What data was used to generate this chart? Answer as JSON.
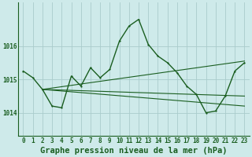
{
  "background_color": "#ceeaea",
  "grid_color": "#aacccc",
  "line_color": "#1a5e20",
  "title": "Graphe pression niveau de la mer (hPa)",
  "xlim": [
    -0.5,
    23.5
  ],
  "ylim": [
    1013.3,
    1017.3
  ],
  "yticks": [
    1014,
    1015,
    1016
  ],
  "xticks": [
    0,
    1,
    2,
    3,
    4,
    5,
    6,
    7,
    8,
    9,
    10,
    11,
    12,
    13,
    14,
    15,
    16,
    17,
    18,
    19,
    20,
    21,
    22,
    23
  ],
  "main_series": {
    "x": [
      0,
      1,
      2,
      3,
      4,
      5,
      6,
      7,
      8,
      9,
      10,
      11,
      12,
      13,
      14,
      15,
      16,
      17,
      18,
      19,
      20,
      21,
      22,
      23
    ],
    "y": [
      1015.25,
      1015.05,
      1014.7,
      1014.2,
      1014.15,
      1015.1,
      1014.8,
      1015.35,
      1015.05,
      1015.3,
      1016.15,
      1016.6,
      1016.8,
      1016.05,
      1015.7,
      1015.5,
      1015.2,
      1014.8,
      1014.55,
      1014.0,
      1014.05,
      1014.5,
      1015.25,
      1015.5
    ]
  },
  "trend_lines": [
    {
      "x": [
        2,
        23
      ],
      "y": [
        1014.7,
        1015.55
      ]
    },
    {
      "x": [
        2,
        23
      ],
      "y": [
        1014.7,
        1014.5
      ]
    },
    {
      "x": [
        2,
        23
      ],
      "y": [
        1014.7,
        1014.2
      ]
    }
  ],
  "title_fontsize": 7.5,
  "tick_fontsize": 5.5,
  "marker_size": 2.5,
  "linewidth": 1.0,
  "trend_linewidth": 0.8
}
